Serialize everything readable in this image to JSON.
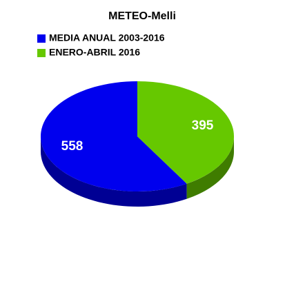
{
  "chart_data": {
    "type": "pie",
    "title": "METEO-Melli",
    "categories": [
      "MEDIA ANUAL 2003-2016",
      "ENERO-ABRIL 2016"
    ],
    "values": [
      558,
      395
    ],
    "colors": [
      "#0000ee",
      "#66c800"
    ]
  }
}
